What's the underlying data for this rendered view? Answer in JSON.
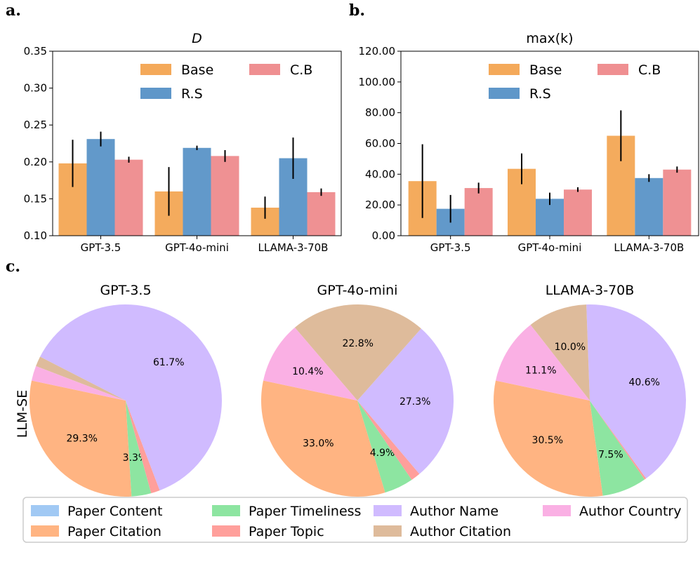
{
  "panel_labels": [
    "a.",
    "b.",
    "c."
  ],
  "colors": {
    "Base": "#f4a95a",
    "R.S": "#5f97c9",
    "C.B": "#ef8f91",
    "Paper Content": "#a1c9f4",
    "Paper Citation": "#ffb482",
    "Paper Timeliness": "#8de5a1",
    "Paper Topic": "#ff9f9b",
    "Author Name": "#d0bbff",
    "Author Citation": "#debb9b",
    "Author Country": "#fab0e4"
  },
  "pie_row_label": "LLM-SE",
  "chart_data": [
    {
      "type": "bar",
      "panel": "a.",
      "title": "D",
      "categories": [
        "GPT-3.5",
        "GPT-4o-mini",
        "LLAMA-3-70B"
      ],
      "ylim": [
        0.1,
        0.35
      ],
      "yticks": [
        0.1,
        0.15,
        0.2,
        0.25,
        0.3,
        0.35
      ],
      "ytick_labels": [
        "0.10",
        "0.15",
        "0.20",
        "0.25",
        "0.30",
        "0.35"
      ],
      "legend": [
        "Base",
        "C.B",
        "R.S"
      ],
      "series": [
        {
          "name": "Base",
          "values": [
            0.198,
            0.16,
            0.138
          ],
          "err": [
            0.032,
            0.033,
            0.015
          ]
        },
        {
          "name": "R.S",
          "values": [
            0.231,
            0.219,
            0.205
          ],
          "err": [
            0.01,
            0.003,
            0.028
          ]
        },
        {
          "name": "C.B",
          "values": [
            0.203,
            0.208,
            0.159
          ],
          "err": [
            0.004,
            0.008,
            0.005
          ]
        }
      ]
    },
    {
      "type": "bar",
      "panel": "b.",
      "title": "max(k)",
      "categories": [
        "GPT-3.5",
        "GPT-4o-mini",
        "LLAMA-3-70B"
      ],
      "ylim": [
        0,
        120
      ],
      "yticks": [
        0,
        20,
        40,
        60,
        80,
        100,
        120
      ],
      "ytick_labels": [
        "0.00",
        "20.00",
        "40.00",
        "60.00",
        "80.00",
        "100.00",
        "120.00"
      ],
      "legend": [
        "Base",
        "C.B",
        "R.S"
      ],
      "series": [
        {
          "name": "Base",
          "values": [
            35.5,
            43.5,
            65.0
          ],
          "err": [
            24.0,
            10.0,
            16.5
          ]
        },
        {
          "name": "R.S",
          "values": [
            17.5,
            24.0,
            37.5
          ],
          "err": [
            9.0,
            4.0,
            2.5
          ]
        },
        {
          "name": "C.B",
          "values": [
            31.0,
            30.0,
            43.0
          ],
          "err": [
            3.5,
            1.5,
            2.0
          ]
        }
      ]
    },
    {
      "type": "pie",
      "panel": "c.",
      "title": "GPT-3.5",
      "labels": [
        "Paper Content",
        "Paper Citation",
        "Paper Timeliness",
        "Paper Topic",
        "Author Name",
        "Author Citation",
        "Author Country"
      ],
      "values": [
        0.0,
        29.3,
        3.3,
        1.5,
        61.7,
        1.7,
        2.5
      ],
      "shown_labels": [
        "",
        "29.3%",
        "3.3%",
        "",
        "61.7%",
        "",
        ""
      ]
    },
    {
      "type": "pie",
      "panel": "c.",
      "title": "GPT-4o-mini",
      "labels": [
        "Paper Content",
        "Paper Citation",
        "Paper Timeliness",
        "Paper Topic",
        "Author Name",
        "Author Citation",
        "Author Country"
      ],
      "values": [
        0.0,
        33.0,
        4.9,
        1.6,
        27.3,
        22.8,
        10.4
      ],
      "shown_labels": [
        "",
        "33.0%",
        "4.9%",
        "",
        "27.3%",
        "22.8%",
        "10.4%"
      ]
    },
    {
      "type": "pie",
      "panel": "c.",
      "title": "LLAMA-3-70B",
      "labels": [
        "Paper Content",
        "Paper Citation",
        "Paper Timeliness",
        "Paper Topic",
        "Author Name",
        "Author Citation",
        "Author Country"
      ],
      "values": [
        0.0,
        30.5,
        7.5,
        0.3,
        40.6,
        10.0,
        11.1
      ],
      "shown_labels": [
        "",
        "30.5%",
        "7.5%",
        "",
        "40.6%",
        "10.0%",
        "11.1%"
      ]
    }
  ],
  "legend_items": [
    "Paper Content",
    "Paper Timeliness",
    "Author Name",
    "Author Country",
    "Paper Citation",
    "Paper Topic",
    "Author Citation"
  ]
}
